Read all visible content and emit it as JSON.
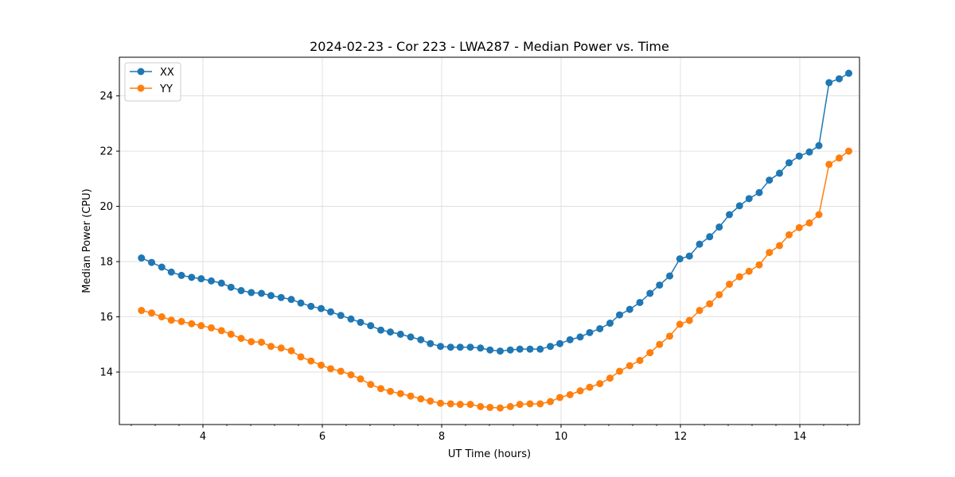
{
  "chart_data": {
    "type": "line",
    "title": "2024-02-23 - Cor 223 - LWA287 - Median Power vs. Time",
    "xlabel": "UT Time (hours)",
    "ylabel": "Median Power (CPU)",
    "xlim": [
      2.6,
      15.0
    ],
    "ylim": [
      12.1,
      25.4
    ],
    "xticks": [
      4,
      6,
      8,
      10,
      12,
      14
    ],
    "yticks": [
      14,
      16,
      18,
      20,
      22,
      24
    ],
    "grid": true,
    "legend": "top-left",
    "x": [
      2.97,
      3.14,
      3.31,
      3.47,
      3.64,
      3.81,
      3.97,
      4.14,
      4.31,
      4.47,
      4.64,
      4.81,
      4.98,
      5.14,
      5.31,
      5.48,
      5.64,
      5.81,
      5.98,
      6.14,
      6.31,
      6.48,
      6.64,
      6.81,
      6.98,
      7.14,
      7.31,
      7.48,
      7.65,
      7.81,
      7.98,
      8.15,
      8.31,
      8.48,
      8.65,
      8.81,
      8.98,
      9.15,
      9.31,
      9.48,
      9.65,
      9.82,
      9.98,
      10.15,
      10.32,
      10.48,
      10.65,
      10.82,
      10.98,
      11.15,
      11.32,
      11.49,
      11.65,
      11.82,
      11.99,
      12.15,
      12.32,
      12.49,
      12.65,
      12.82,
      12.99,
      13.15,
      13.32,
      13.49,
      13.66,
      13.82,
      13.99,
      14.16,
      14.32,
      14.49,
      14.66,
      14.82
    ],
    "series": [
      {
        "name": "XX",
        "color": "#1f77b4",
        "values": [
          18.13,
          17.97,
          17.8,
          17.62,
          17.5,
          17.43,
          17.38,
          17.3,
          17.22,
          17.07,
          16.95,
          16.88,
          16.85,
          16.77,
          16.7,
          16.63,
          16.5,
          16.38,
          16.3,
          16.18,
          16.05,
          15.92,
          15.8,
          15.68,
          15.52,
          15.45,
          15.37,
          15.27,
          15.17,
          15.03,
          14.93,
          14.9,
          14.9,
          14.9,
          14.87,
          14.8,
          14.76,
          14.8,
          14.83,
          14.83,
          14.83,
          14.93,
          15.03,
          15.17,
          15.27,
          15.43,
          15.57,
          15.77,
          16.07,
          16.27,
          16.52,
          16.85,
          17.15,
          17.48,
          18.1,
          18.2,
          18.63,
          18.9,
          19.25,
          19.7,
          20.02,
          20.28,
          20.5,
          20.95,
          21.2,
          21.58,
          21.82,
          21.97,
          22.2,
          24.48,
          24.62,
          24.82
        ]
      },
      {
        "name": "YY",
        "color": "#ff7f0e",
        "values": [
          16.23,
          16.14,
          16.0,
          15.88,
          15.83,
          15.75,
          15.68,
          15.6,
          15.5,
          15.37,
          15.22,
          15.1,
          15.08,
          14.93,
          14.87,
          14.77,
          14.55,
          14.4,
          14.25,
          14.12,
          14.03,
          13.9,
          13.75,
          13.55,
          13.4,
          13.3,
          13.22,
          13.13,
          13.03,
          12.95,
          12.87,
          12.85,
          12.83,
          12.83,
          12.75,
          12.72,
          12.7,
          12.75,
          12.83,
          12.85,
          12.85,
          12.93,
          13.08,
          13.18,
          13.32,
          13.45,
          13.58,
          13.78,
          14.03,
          14.23,
          14.42,
          14.7,
          15.0,
          15.3,
          15.73,
          15.87,
          16.23,
          16.47,
          16.8,
          17.18,
          17.45,
          17.65,
          17.88,
          18.33,
          18.58,
          18.97,
          19.23,
          19.4,
          19.7,
          21.52,
          21.75,
          22.0
        ]
      }
    ]
  }
}
